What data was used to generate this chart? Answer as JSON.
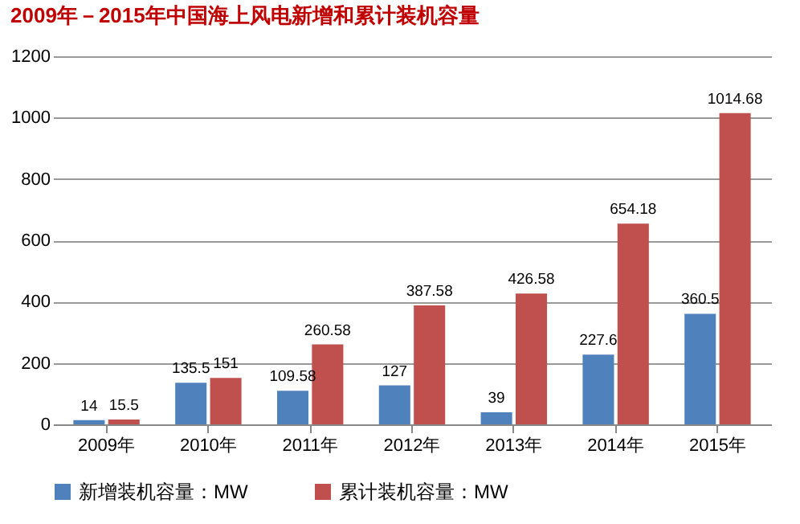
{
  "chart_data": {
    "type": "bar",
    "title": "2009年－2015年中国海上风电新增和累计装机容量",
    "categories": [
      "2009年",
      "2010年",
      "2011年",
      "2012年",
      "2013年",
      "2014年",
      "2015年"
    ],
    "series": [
      {
        "name": "新增装机容量：MW",
        "color": "#4f81bd",
        "values": [
          14,
          135.5,
          109.58,
          127,
          39,
          227.6,
          360.5
        ]
      },
      {
        "name": "累计装机容量：MW",
        "color": "#c0504d",
        "values": [
          15.5,
          151,
          260.58,
          387.58,
          426.58,
          654.18,
          1014.68
        ]
      }
    ],
    "ylim": [
      0,
      1200
    ],
    "yticks": [
      0,
      200,
      400,
      600,
      800,
      1000,
      1200
    ],
    "grid": "y",
    "legend": "bottom",
    "data_labels": true
  }
}
